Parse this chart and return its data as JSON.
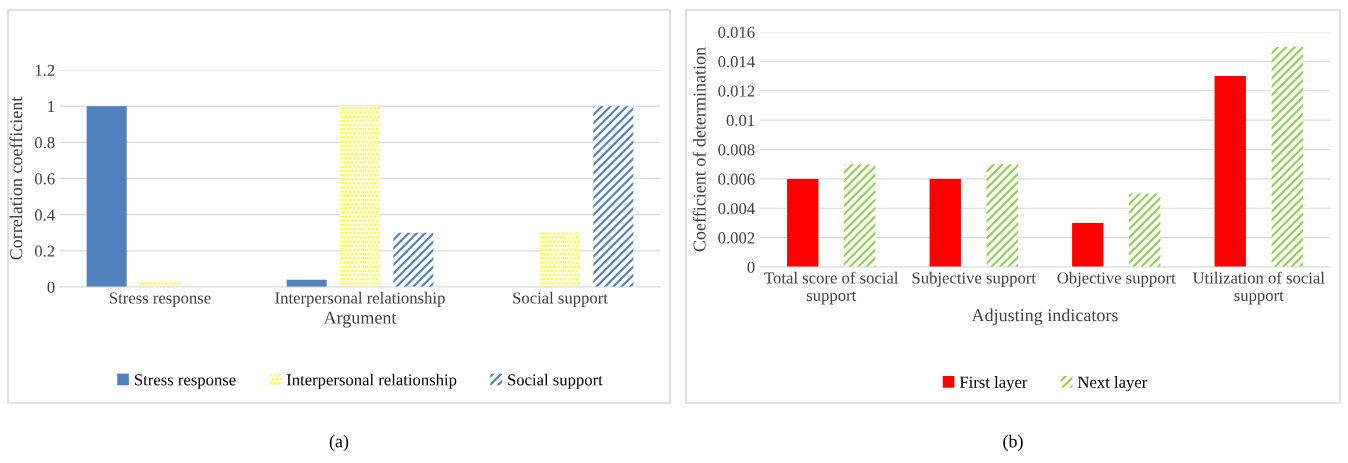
{
  "chart_data": [
    {
      "type": "bar",
      "xlabel": "Argument",
      "ylabel": "Correlation coefficient",
      "categories": [
        "Stress response",
        "Interpersonal relationship",
        "Social support"
      ],
      "series": [
        {
          "name": "Stress response",
          "color": "#4f81bd",
          "values": [
            1,
            0.04,
            0
          ]
        },
        {
          "name": "Interpersonal relationship",
          "color": "#ffff00",
          "values": [
            0.03,
            1,
            0.3
          ]
        },
        {
          "name": "Social support",
          "color": "#4f81bd",
          "values": [
            0,
            0.3,
            1
          ]
        }
      ],
      "ylim": [
        0,
        1.2
      ],
      "yticks": [
        0,
        {
          "value": 0.2,
          "label": "0.2"
        },
        {
          "value": 0.4,
          "label": "0.4"
        },
        {
          "value": 0.6,
          "label": "0.6"
        },
        {
          "value": 0.8,
          "label": "0.8"
        },
        1,
        {
          "value": 1.2,
          "label": "1.2"
        }
      ],
      "grid": "y",
      "legend": "bottom",
      "annotations": [
        "(a)"
      ]
    },
    {
      "type": "bar",
      "xlabel": "Adjusting indicators",
      "ylabel": "Coefficient of determination",
      "categories": [
        "Total score of social\nsupport",
        "Subjective support",
        "Objective support",
        "Utilization of social\nsupport"
      ],
      "series": [
        {
          "name": "First layer",
          "color": "#ff0000",
          "values": [
            0.006,
            0.006,
            0.003,
            0.013
          ]
        },
        {
          "name": "Next layer",
          "color": "#92d050",
          "values": [
            0.007,
            0.007,
            0.005,
            0.015
          ]
        }
      ],
      "ylim": [
        0,
        0.016
      ],
      "yticks": [
        0,
        0.002,
        0.004,
        0.006,
        0.008,
        0.01,
        0.012,
        0.014,
        0.016
      ],
      "grid": "y",
      "legend": "bottom",
      "annotations": [
        "(b)"
      ]
    }
  ]
}
